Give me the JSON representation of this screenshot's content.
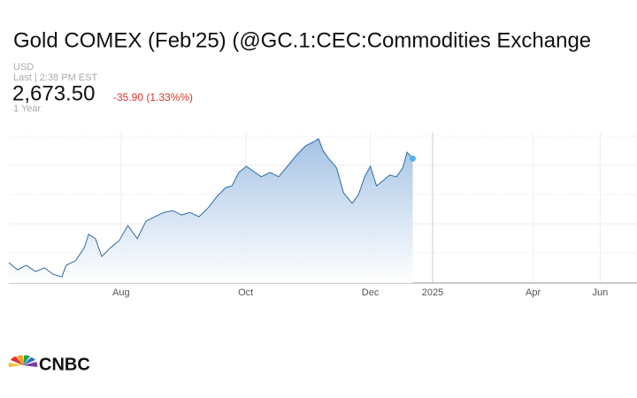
{
  "header": {
    "title": "Gold COMEX (Feb'25) (@GC.1:CEC:Commodities Exchange",
    "currency": "USD",
    "last": "Last | 2:38 PM EST",
    "price": "2,673.50",
    "change": "-35.90 (1.33%%)",
    "range": "1 Year"
  },
  "logo": "CNBC",
  "chart_data": {
    "type": "area",
    "color": "#2f6aa6",
    "fill": "#a9c6e6",
    "grid": true,
    "x": [
      6.2,
      6.34,
      6.48,
      6.63,
      6.77,
      6.91,
      7.05,
      7.12,
      7.27,
      7.41,
      7.48,
      7.59,
      7.69,
      7.83,
      7.97,
      8.11,
      8.26,
      8.4,
      8.54,
      8.69,
      8.83,
      8.97,
      9.11,
      9.25,
      9.4,
      9.54,
      9.68,
      9.78,
      9.89,
      10.01,
      10.11,
      10.25,
      10.39,
      10.53,
      10.67,
      10.82,
      10.96,
      11.1,
      11.17,
      11.24,
      11.34,
      11.46,
      11.57,
      11.71,
      11.81,
      11.91,
      12,
      12.1,
      12.19,
      12.31,
      12.42,
      12.52,
      12.59,
      12.68
    ],
    "values": [
      2317,
      2292,
      2308,
      2286,
      2299,
      2277,
      2268,
      2308,
      2323,
      2368,
      2414,
      2399,
      2338,
      2368,
      2392,
      2444,
      2399,
      2459,
      2474,
      2489,
      2495,
      2480,
      2489,
      2474,
      2505,
      2544,
      2574,
      2580,
      2626,
      2647,
      2632,
      2611,
      2626,
      2611,
      2647,
      2686,
      2717,
      2732,
      2741,
      2701,
      2671,
      2641,
      2556,
      2520,
      2550,
      2611,
      2647,
      2580,
      2595,
      2617,
      2611,
      2641,
      2695,
      2673.5
    ],
    "xlim": [
      6.2,
      19.1
    ],
    "xticks": [
      {
        "value": 8,
        "label": "Aug"
      },
      {
        "value": 10,
        "label": "Oct"
      },
      {
        "value": 12,
        "label": "Dec"
      },
      {
        "value": 13,
        "label": "2025"
      },
      {
        "value": 16,
        "label": "Apr"
      },
      {
        "value": 18,
        "label": "Jun"
      }
    ],
    "ylim": [
      2247,
      2762
    ],
    "yticks": [
      2350,
      2450,
      2550,
      2650,
      2750
    ]
  }
}
